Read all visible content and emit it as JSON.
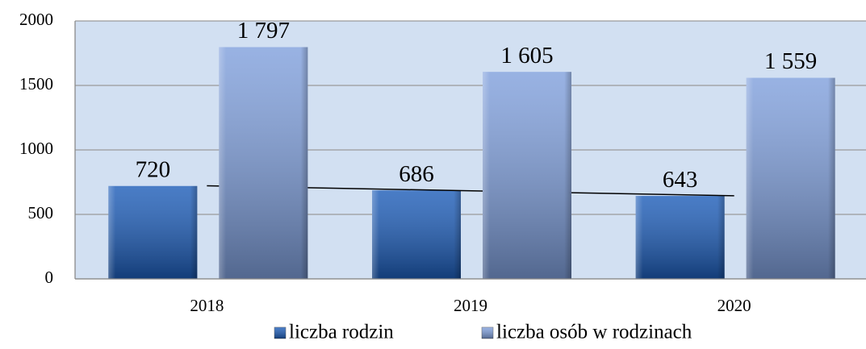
{
  "chart_data": {
    "type": "bar",
    "categories": [
      "2018",
      "2019",
      "2020"
    ],
    "series": [
      {
        "name": "liczba rodzin",
        "color": "#1c5cb8",
        "values": [
          720,
          686,
          643
        ],
        "trendline": true
      },
      {
        "name": "liczba osób w rodzinach",
        "color": "#7f9fdc",
        "values": [
          1797,
          1605,
          1559
        ],
        "value_labels": [
          "1 797",
          "1 605",
          "1 559"
        ]
      }
    ],
    "ylim": [
      0,
      2000
    ],
    "yticks": [
      0,
      500,
      1000,
      1500,
      2000
    ],
    "grid": true,
    "legend": "bottom"
  }
}
